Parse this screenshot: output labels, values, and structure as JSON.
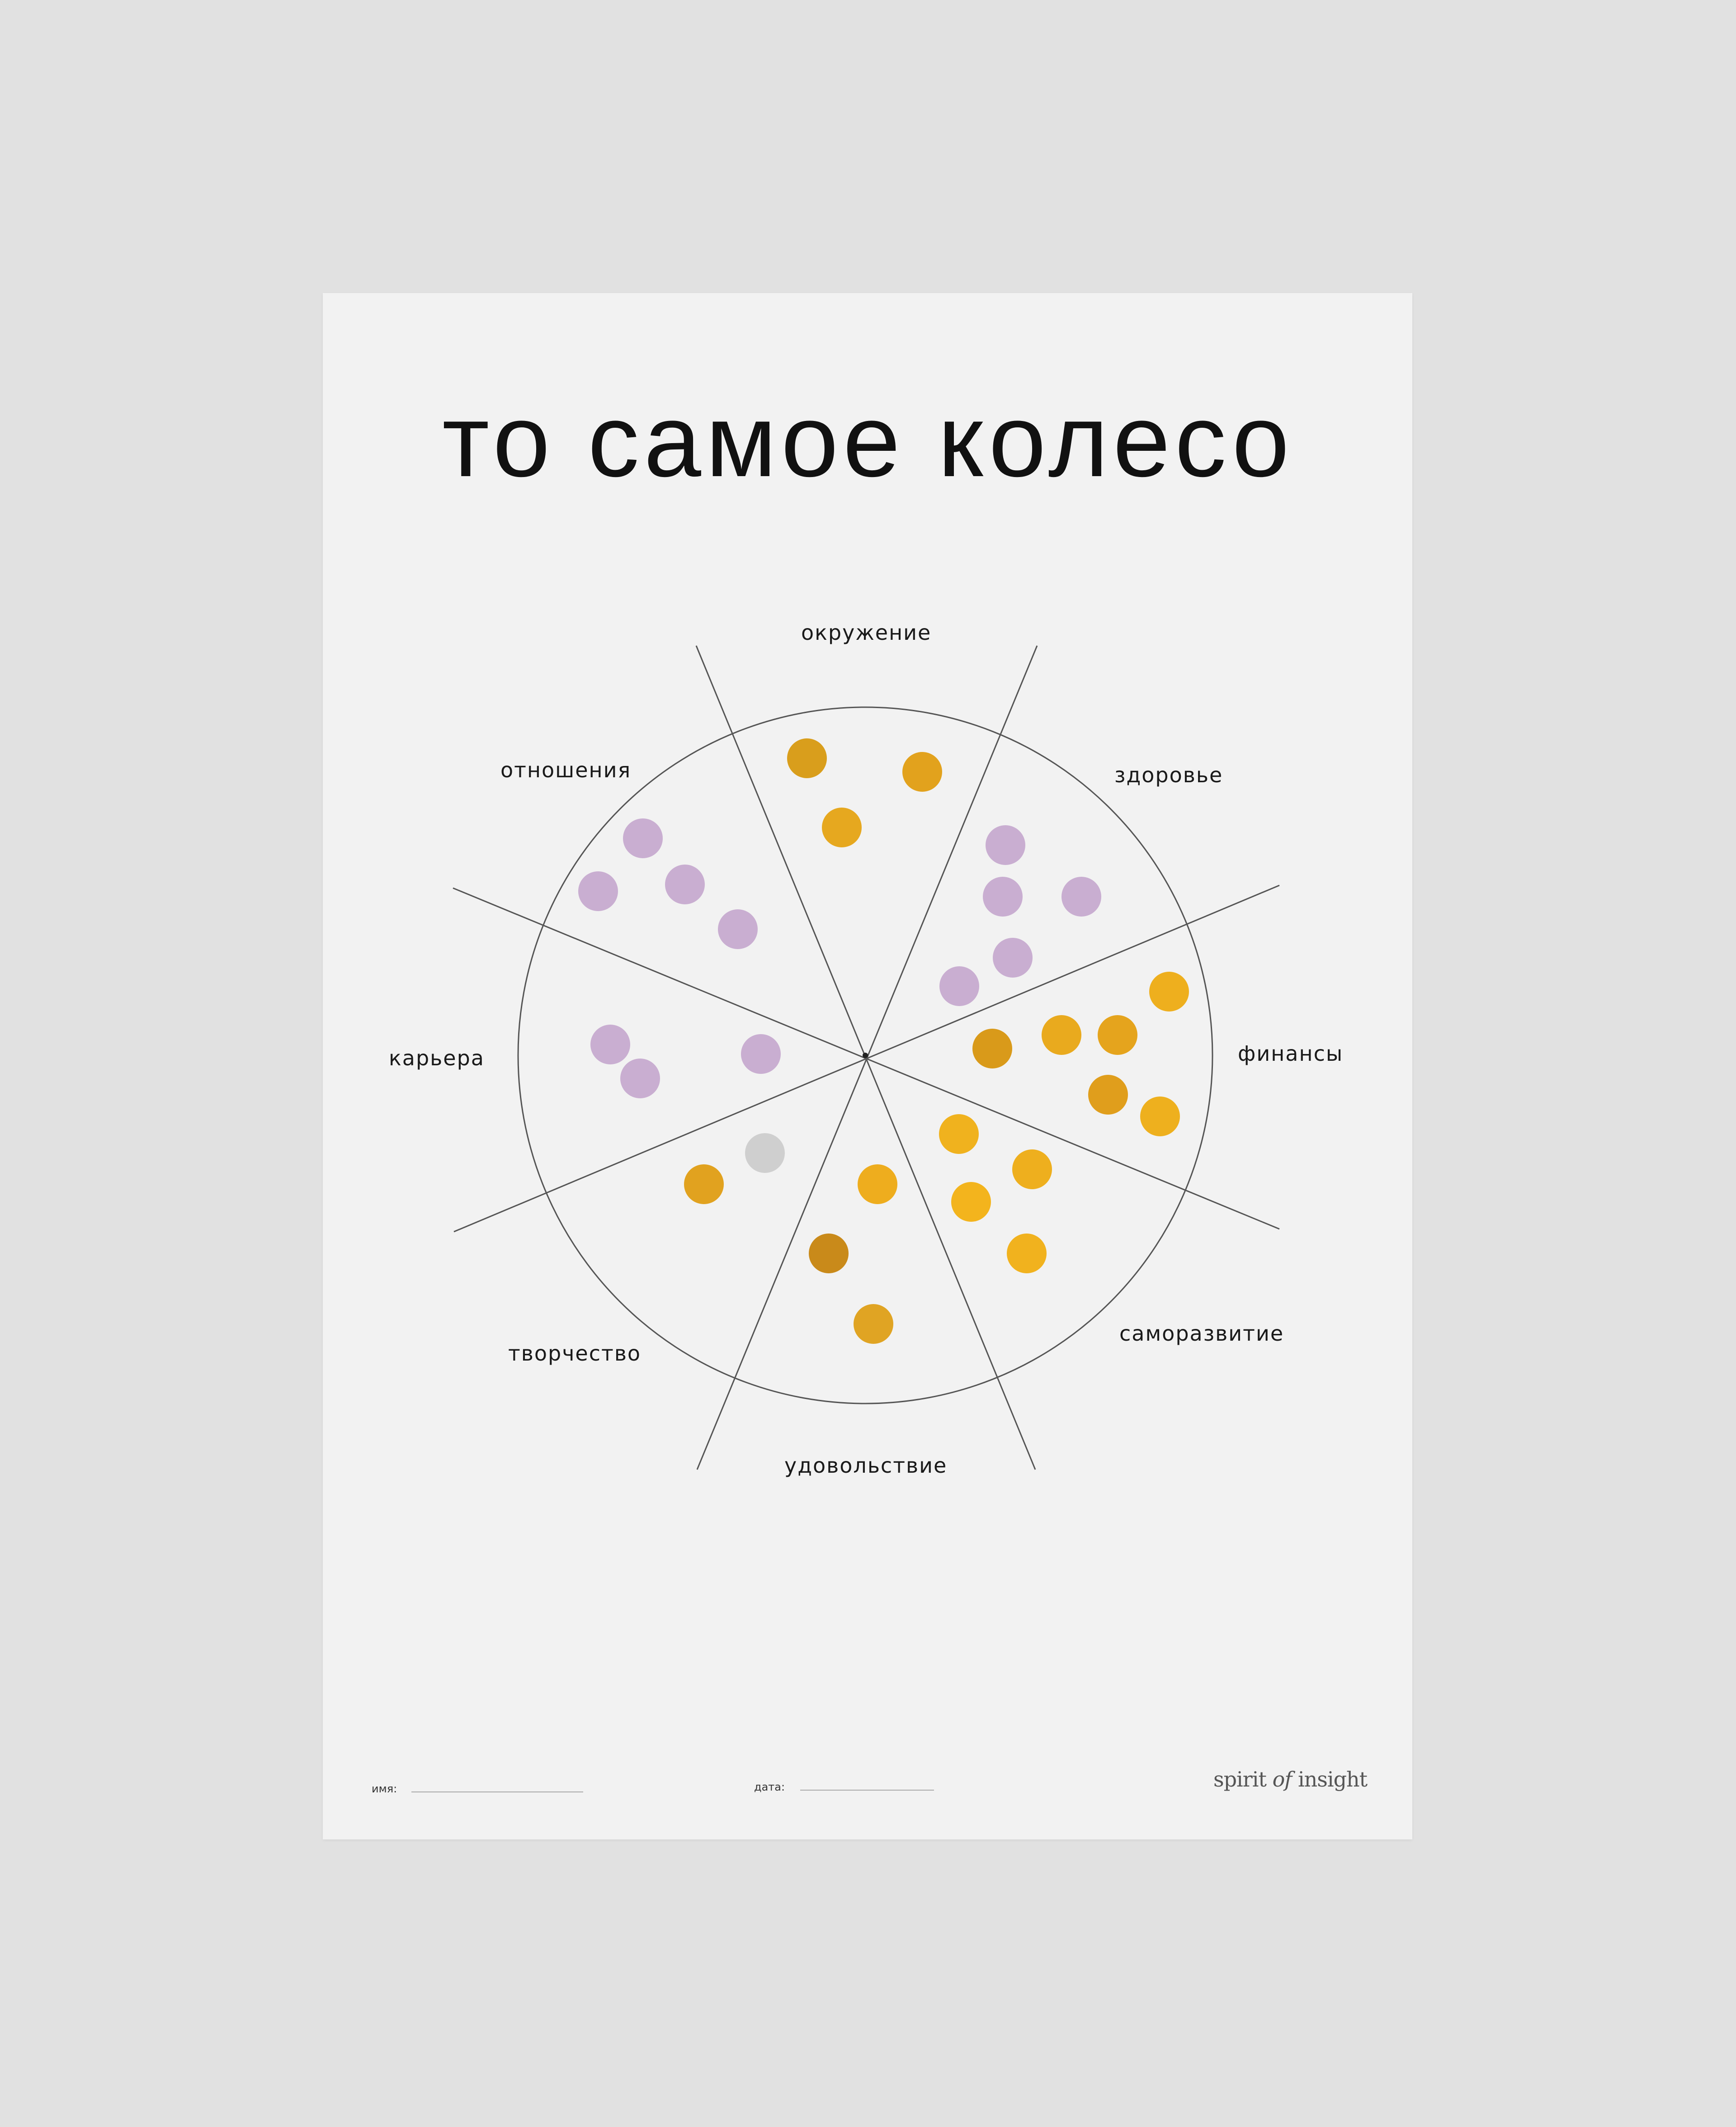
{
  "title": "то самое колесо",
  "segments": [
    {
      "key": "environment",
      "label": "окружение",
      "color": "#dfa51f",
      "dots": 3
    },
    {
      "key": "health",
      "label": "здоровье",
      "color": "#c9aed1",
      "dots": 6
    },
    {
      "key": "finance",
      "label": "финансы",
      "color": "#eeaf1e",
      "dots": 7
    },
    {
      "key": "self_development",
      "label": "саморазвитие",
      "color": "#f3b41d",
      "dots": 5
    },
    {
      "key": "pleasure",
      "label": "удовольствие",
      "color": "#e8a824",
      "dots": 3
    },
    {
      "key": "creativity",
      "label": "творчество",
      "color": "#e1a21f",
      "dots": 1
    },
    {
      "key": "career",
      "label": "карьера",
      "color": "#c9aed1",
      "dots": 3
    },
    {
      "key": "relationships",
      "label": "отношения",
      "color": "#c9aed1",
      "dots": 4
    }
  ],
  "colors": {
    "gold": "#e8a824",
    "dark_gold": "#c98a1a",
    "lilac": "#c9aed1",
    "grey": "#cfcfcf",
    "line": "#555555",
    "paper": "#f2f2f2",
    "background": "#e1e1e1"
  },
  "footer": {
    "name_label": "имя:",
    "date_label": "дата:",
    "brand_pre": "spirit",
    "brand_of": "of",
    "brand_post": "insight"
  }
}
